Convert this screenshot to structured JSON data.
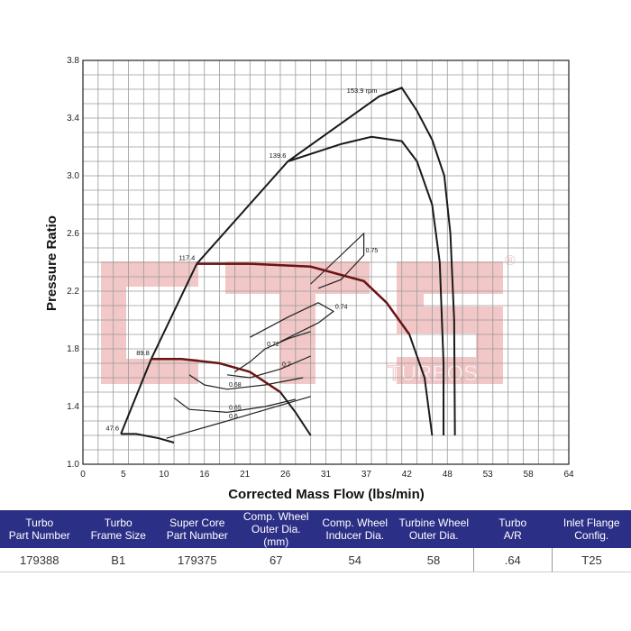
{
  "chart_data": {
    "type": "line",
    "title": "",
    "xlabel": "Corrected Mass Flow (lbs/min)",
    "ylabel": "Pressure Ratio",
    "xlim": [
      0,
      64
    ],
    "ylim": [
      1.0,
      3.8
    ],
    "x_ticks": [
      "0",
      "5",
      "10",
      "16",
      "21",
      "26",
      "31",
      "37",
      "42",
      "48",
      "53",
      "58",
      "64"
    ],
    "y_ticks": [
      "1.0",
      "1.4",
      "1.8",
      "2.2",
      "2.6",
      "3.0",
      "3.4",
      "3.8"
    ],
    "grid": true,
    "speed_lines": [
      {
        "label": "47.6",
        "points": [
          [
            5,
            1.21
          ],
          [
            7,
            1.21
          ],
          [
            10,
            1.18
          ],
          [
            12,
            1.15
          ]
        ]
      },
      {
        "label": "89.8",
        "points": [
          [
            9,
            1.73
          ],
          [
            13,
            1.73
          ],
          [
            18,
            1.7
          ],
          [
            22,
            1.64
          ],
          [
            26,
            1.5
          ],
          [
            28,
            1.36
          ],
          [
            30,
            1.2
          ]
        ]
      },
      {
        "label": "117.4",
        "points": [
          [
            15,
            2.39
          ],
          [
            22,
            2.39
          ],
          [
            30,
            2.37
          ],
          [
            37,
            2.27
          ],
          [
            40,
            2.12
          ],
          [
            43,
            1.9
          ],
          [
            45,
            1.6
          ],
          [
            46,
            1.2
          ]
        ]
      },
      {
        "label": "139.6",
        "points": [
          [
            27,
            3.1
          ],
          [
            34,
            3.22
          ],
          [
            38,
            3.27
          ],
          [
            42,
            3.24
          ],
          [
            44,
            3.1
          ],
          [
            46,
            2.8
          ],
          [
            47,
            2.4
          ],
          [
            47.5,
            1.7
          ],
          [
            47.5,
            1.2
          ]
        ]
      },
      {
        "label": "153.9 rpm",
        "points": [
          [
            39,
            3.55
          ],
          [
            42,
            3.61
          ],
          [
            44,
            3.45
          ],
          [
            46,
            3.25
          ],
          [
            47.6,
            3.0
          ],
          [
            48.4,
            2.6
          ],
          [
            48.9,
            2.0
          ],
          [
            49,
            1.2
          ]
        ]
      }
    ],
    "surge_line": [
      [
        5,
        1.21
      ],
      [
        9,
        1.73
      ],
      [
        15,
        2.39
      ],
      [
        27,
        3.1
      ],
      [
        39,
        3.55
      ],
      [
        42,
        3.61
      ]
    ],
    "efficiency_islands": [
      {
        "label": "0.6",
        "points": [
          [
            11,
            1.18
          ],
          [
            19,
            1.3
          ],
          [
            30,
            1.47
          ]
        ]
      },
      {
        "label": "0.65",
        "points": [
          [
            12,
            1.46
          ],
          [
            14,
            1.38
          ],
          [
            19,
            1.36
          ],
          [
            24,
            1.4
          ],
          [
            28,
            1.45
          ]
        ]
      },
      {
        "label": "0.68",
        "points": [
          [
            14,
            1.62
          ],
          [
            16,
            1.55
          ],
          [
            19,
            1.52
          ],
          [
            24,
            1.55
          ],
          [
            29,
            1.6
          ]
        ]
      },
      {
        "label": "0.7",
        "points": [
          [
            19,
            1.62
          ],
          [
            22,
            1.6
          ],
          [
            26,
            1.66
          ],
          [
            30,
            1.75
          ]
        ]
      },
      {
        "label": "0.72",
        "points": [
          [
            20,
            1.64
          ],
          [
            22,
            1.71
          ],
          [
            24,
            1.8
          ],
          [
            27,
            1.87
          ],
          [
            30,
            1.92
          ]
        ]
      },
      {
        "label": "0.74",
        "points": [
          [
            22,
            1.88
          ],
          [
            27,
            2.02
          ],
          [
            31,
            2.12
          ],
          [
            33,
            2.06
          ],
          [
            31,
            1.98
          ],
          [
            26,
            1.85
          ]
        ]
      },
      {
        "label": "0.75",
        "points": [
          [
            30,
            2.25
          ],
          [
            34,
            2.45
          ],
          [
            37,
            2.6
          ],
          [
            37,
            2.45
          ],
          [
            34,
            2.28
          ],
          [
            31,
            2.22
          ]
        ]
      }
    ]
  },
  "watermark": {
    "brand": "CTS",
    "sub": "TURBOS",
    "mark": "®"
  },
  "table": {
    "headers": [
      [
        "Turbo",
        "Part Number"
      ],
      [
        "Turbo",
        "Frame Size"
      ],
      [
        "Super Core",
        "Part Number"
      ],
      [
        "Comp. Wheel",
        "Outer Dia. (mm)"
      ],
      [
        "Comp. Wheel",
        "Inducer Dia."
      ],
      [
        "Turbine Wheel",
        "Outer Dia."
      ],
      [
        "Turbo",
        "A/R"
      ],
      [
        "Inlet Flange",
        "Config."
      ]
    ],
    "row": [
      "179388",
      "B1",
      "179375",
      "67",
      "54",
      "58",
      ".64",
      "T25"
    ]
  },
  "colors": {
    "table_header_bg": "#2c2f86",
    "speed_line": "#1a1a1a",
    "operating_line": "#6b1414",
    "watermark": "#e8a0a0",
    "grid": "#9a9a9a"
  }
}
